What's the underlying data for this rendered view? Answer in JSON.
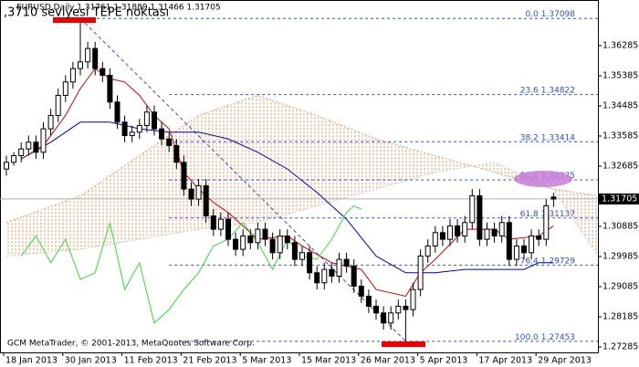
{
  "chart_data": {
    "type": "candlestick",
    "title": "EURUSD,Daily  1.31761 1.31889 1.31466 1.31705",
    "annotation": ",3710 seviyesi TEPE noktası",
    "footer": "GCM MetaTrader, © 2001-2013, MetaQuotes Software Corp.",
    "categories": [
      "18 Jan 2013",
      null,
      null,
      null,
      null,
      null,
      null,
      null,
      "30 Jan 2013",
      null,
      null,
      null,
      null,
      null,
      null,
      null,
      "11 Feb 2013",
      null,
      null,
      null,
      null,
      null,
      null,
      null,
      "21 Feb 2013",
      null,
      null,
      null,
      null,
      null,
      null,
      null,
      "5 Mar 2013",
      null,
      null,
      null,
      null,
      null,
      null,
      null,
      "15 Mar 2013",
      null,
      null,
      null,
      null,
      null,
      null,
      null,
      "26 Mar 2013",
      null,
      null,
      null,
      null,
      null,
      null,
      null,
      "5 Apr 2013",
      null,
      null,
      null,
      null,
      null,
      null,
      null,
      "17 Apr 2013",
      null,
      null,
      null,
      null,
      null,
      null,
      null,
      "29 Apr 2013",
      null,
      null
    ],
    "open": [
      1.326,
      1.328,
      1.33,
      1.332,
      1.334,
      1.331,
      1.338,
      1.342,
      1.348,
      1.352,
      1.356,
      1.358,
      1.362,
      1.356,
      1.354,
      1.346,
      1.34,
      1.336,
      1.337,
      1.339,
      1.343,
      1.338,
      1.335,
      1.333,
      1.328,
      1.32,
      1.317,
      1.321,
      1.312,
      1.308,
      1.311,
      1.305,
      1.302,
      1.306,
      1.304,
      1.308,
      1.305,
      1.301,
      1.306,
      1.304,
      1.299,
      1.301,
      1.295,
      1.292,
      1.296,
      1.294,
      1.299,
      1.297,
      1.291,
      1.288,
      1.285,
      1.283,
      1.28,
      1.283,
      1.285,
      1.284,
      1.29,
      1.3,
      1.303,
      1.307,
      1.305,
      1.309,
      1.306,
      1.31,
      1.318,
      1.305,
      1.308,
      1.306,
      1.31,
      1.299,
      1.303,
      1.301,
      1.306,
      1.305,
      1.31761
    ],
    "high": [
      1.33,
      1.331,
      1.334,
      1.336,
      1.336,
      1.34,
      1.344,
      1.35,
      1.354,
      1.358,
      1.37098,
      1.364,
      1.364,
      1.358,
      1.356,
      1.348,
      1.342,
      1.339,
      1.341,
      1.345,
      1.345,
      1.34,
      1.337,
      1.335,
      1.33,
      1.322,
      1.323,
      1.323,
      1.314,
      1.313,
      1.313,
      1.307,
      1.308,
      1.308,
      1.31,
      1.31,
      1.307,
      1.308,
      1.308,
      1.306,
      1.303,
      1.303,
      1.297,
      1.298,
      1.298,
      1.301,
      1.301,
      1.299,
      1.293,
      1.29,
      1.287,
      1.285,
      1.285,
      1.287,
      1.287,
      1.292,
      1.302,
      1.305,
      1.309,
      1.309,
      1.311,
      1.311,
      1.312,
      1.32,
      1.32,
      1.31,
      1.31,
      1.312,
      1.312,
      1.305,
      1.305,
      1.308,
      1.308,
      1.317,
      1.31889
    ],
    "low": [
      1.324,
      1.327,
      1.328,
      1.33,
      1.329,
      1.329,
      1.336,
      1.34,
      1.346,
      1.35,
      1.354,
      1.356,
      1.354,
      1.352,
      1.344,
      1.338,
      1.334,
      1.334,
      1.335,
      1.337,
      1.336,
      1.333,
      1.331,
      1.326,
      1.318,
      1.315,
      1.315,
      1.31,
      1.306,
      1.306,
      1.303,
      1.3,
      1.3,
      1.302,
      1.302,
      1.303,
      1.299,
      1.299,
      1.302,
      1.297,
      1.297,
      1.293,
      1.29,
      1.29,
      1.292,
      1.292,
      1.295,
      1.289,
      1.286,
      1.283,
      1.281,
      1.278,
      1.278,
      1.281,
      1.27453,
      1.282,
      1.288,
      1.298,
      1.301,
      1.303,
      1.303,
      1.304,
      1.304,
      1.308,
      1.303,
      1.303,
      1.304,
      1.304,
      1.297,
      1.297,
      1.299,
      1.299,
      1.303,
      1.303,
      1.31466
    ],
    "close": [
      1.328,
      1.33,
      1.332,
      1.334,
      1.331,
      1.338,
      1.342,
      1.348,
      1.352,
      1.356,
      1.358,
      1.362,
      1.356,
      1.354,
      1.346,
      1.34,
      1.336,
      1.337,
      1.339,
      1.343,
      1.338,
      1.335,
      1.333,
      1.328,
      1.32,
      1.317,
      1.321,
      1.312,
      1.308,
      1.311,
      1.305,
      1.302,
      1.306,
      1.304,
      1.308,
      1.305,
      1.301,
      1.306,
      1.304,
      1.299,
      1.301,
      1.295,
      1.292,
      1.296,
      1.294,
      1.299,
      1.297,
      1.291,
      1.288,
      1.285,
      1.283,
      1.28,
      1.283,
      1.285,
      1.284,
      1.29,
      1.3,
      1.303,
      1.307,
      1.305,
      1.309,
      1.306,
      1.31,
      1.318,
      1.305,
      1.308,
      1.306,
      1.31,
      1.299,
      1.303,
      1.301,
      1.306,
      1.305,
      1.315,
      1.31705
    ],
    "ylim": [
      1.27121,
      1.37649
    ],
    "yticks": [
      1.27285,
      1.28185,
      1.29085,
      1.29985,
      1.30885,
      1.32685,
      1.33585,
      1.34485,
      1.35385,
      1.36285
    ],
    "last_price": 1.31705,
    "lines": [
      {
        "color": "#0000c0",
        "x": [
          2,
          6,
          10,
          14,
          18,
          22,
          26,
          30,
          34,
          38,
          42,
          46,
          50,
          54,
          58,
          62,
          64,
          68,
          70,
          72,
          74
        ],
        "values": [
          1.329,
          1.334,
          1.34,
          1.34,
          1.338,
          1.337,
          1.337,
          1.335,
          1.331,
          1.326,
          1.319,
          1.311,
          1.3,
          1.295,
          1.295,
          1.296,
          1.296,
          1.296,
          1.296,
          1.298,
          1.298
        ]
      },
      {
        "color": "#d00000",
        "x": [
          2,
          5,
          8,
          10,
          12,
          14,
          16,
          18,
          20,
          22,
          24,
          26,
          28,
          30,
          32,
          34,
          38,
          40,
          44,
          48,
          50,
          54,
          56,
          58,
          62,
          66,
          68,
          72,
          74
        ],
        "values": [
          1.329,
          1.333,
          1.342,
          1.35,
          1.356,
          1.353,
          1.352,
          1.348,
          1.342,
          1.338,
          1.325,
          1.32,
          1.316,
          1.313,
          1.309,
          1.305,
          1.306,
          1.303,
          1.298,
          1.296,
          1.29,
          1.288,
          1.295,
          1.299,
          1.308,
          1.308,
          1.305,
          1.306,
          1.309
        ]
      },
      {
        "color": "#33dd33",
        "x": [
          2,
          4,
          6,
          8,
          10,
          12,
          14,
          16,
          18,
          20,
          22,
          24,
          26,
          28,
          30,
          32,
          34,
          36,
          38,
          40,
          42,
          44,
          46,
          47,
          48
        ],
        "values": [
          1.3,
          1.306,
          1.298,
          1.305,
          1.293,
          1.295,
          1.31,
          1.29,
          1.298,
          1.28,
          1.284,
          1.29,
          1.295,
          1.303,
          1.305,
          1.31,
          1.304,
          1.296,
          1.305,
          1.3,
          1.299,
          1.305,
          1.313,
          1.315,
          1.314
        ]
      }
    ],
    "cloud": {
      "color": "#e0a070",
      "x": [
        0,
        10,
        18,
        26,
        34,
        42,
        50,
        58,
        66,
        74,
        80
      ],
      "span_a": [
        1.31,
        1.318,
        1.33,
        1.342,
        1.348,
        1.342,
        1.335,
        1.33,
        1.325,
        1.32,
        1.318
      ],
      "span_b": [
        1.3,
        1.302,
        1.305,
        1.308,
        1.31,
        1.315,
        1.32,
        1.325,
        1.328,
        1.32,
        1.3
      ]
    },
    "fibonacci": [
      {
        "level": "0.0",
        "price": 1.37098
      },
      {
        "level": "23.6",
        "price": 1.34822
      },
      {
        "level": "38.2",
        "price": 1.33414
      },
      {
        "level": "50.0",
        "price": 1.32275
      },
      {
        "level": "61.8",
        "price": 1.31137
      },
      {
        "level": "76.4",
        "price": 1.29729
      },
      {
        "level": "100.0",
        "price": 1.27453
      }
    ]
  }
}
